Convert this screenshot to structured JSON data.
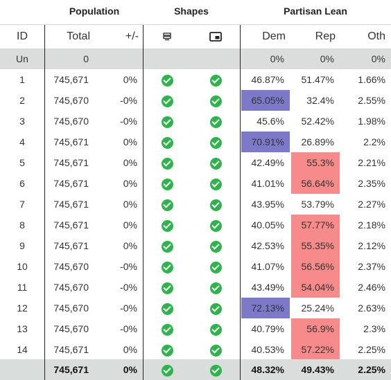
{
  "groups": {
    "population": "Population",
    "shapes": "Shapes",
    "partisan": "Partisan Lean"
  },
  "columns": {
    "id": "ID",
    "total": "Total",
    "delta": "+/-",
    "dem": "Dem",
    "rep": "Rep",
    "oth": "Oth"
  },
  "header_icons": {
    "shape_a": "layers-icon",
    "shape_b": "window-icon"
  },
  "unassigned": {
    "id": "Un",
    "total": "0",
    "dem": "0%",
    "rep": "0%",
    "oth": "0%"
  },
  "rows": [
    {
      "id": "1",
      "total": "745,671",
      "delta": "0%",
      "dem": "46.87%",
      "rep": "51.47%",
      "oth": "1.66%",
      "hl": ""
    },
    {
      "id": "2",
      "total": "745,670",
      "delta": "-0%",
      "dem": "65.05%",
      "rep": "32.4%",
      "oth": "2.55%",
      "hl": "dem"
    },
    {
      "id": "3",
      "total": "745,670",
      "delta": "-0%",
      "dem": "45.6%",
      "rep": "52.42%",
      "oth": "1.98%",
      "hl": ""
    },
    {
      "id": "4",
      "total": "745,671",
      "delta": "0%",
      "dem": "70.91%",
      "rep": "26.89%",
      "oth": "2.2%",
      "hl": "dem"
    },
    {
      "id": "5",
      "total": "745,671",
      "delta": "0%",
      "dem": "42.49%",
      "rep": "55.3%",
      "oth": "2.21%",
      "hl": "rep"
    },
    {
      "id": "6",
      "total": "745,671",
      "delta": "0%",
      "dem": "41.01%",
      "rep": "56.64%",
      "oth": "2.35%",
      "hl": "rep"
    },
    {
      "id": "7",
      "total": "745,671",
      "delta": "0%",
      "dem": "43.95%",
      "rep": "53.79%",
      "oth": "2.27%",
      "hl": ""
    },
    {
      "id": "8",
      "total": "745,671",
      "delta": "0%",
      "dem": "40.05%",
      "rep": "57.77%",
      "oth": "2.18%",
      "hl": "rep"
    },
    {
      "id": "9",
      "total": "745,671",
      "delta": "0%",
      "dem": "42.53%",
      "rep": "55.35%",
      "oth": "2.12%",
      "hl": "rep"
    },
    {
      "id": "10",
      "total": "745,670",
      "delta": "-0%",
      "dem": "41.07%",
      "rep": "56.56%",
      "oth": "2.37%",
      "hl": "rep"
    },
    {
      "id": "11",
      "total": "745,670",
      "delta": "-0%",
      "dem": "43.49%",
      "rep": "54.04%",
      "oth": "2.46%",
      "hl": "rep"
    },
    {
      "id": "12",
      "total": "745,670",
      "delta": "-0%",
      "dem": "72.13%",
      "rep": "25.24%",
      "oth": "2.63%",
      "hl": "dem"
    },
    {
      "id": "13",
      "total": "745,670",
      "delta": "-0%",
      "dem": "40.79%",
      "rep": "56.9%",
      "oth": "2.3%",
      "hl": "rep"
    },
    {
      "id": "14",
      "total": "745,671",
      "delta": "0%",
      "dem": "40.53%",
      "rep": "57.22%",
      "oth": "2.25%",
      "hl": "rep"
    }
  ],
  "footer": {
    "total": "745,671",
    "delta": "0%",
    "dem": "48.32%",
    "rep": "49.43%",
    "oth": "2.25%"
  },
  "colors": {
    "dem_highlight": "#7c79c8",
    "rep_highlight": "#f78a8a",
    "check": "#2db54c",
    "band": "#d9dddc"
  }
}
